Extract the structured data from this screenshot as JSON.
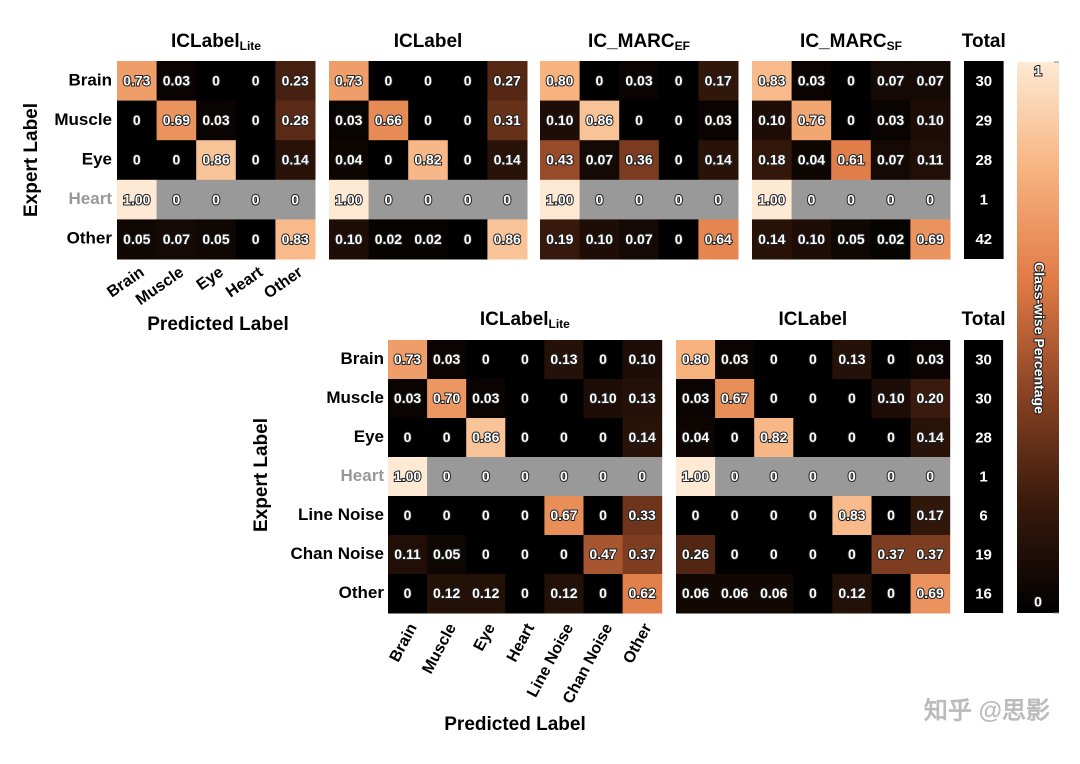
{
  "chart_data": {
    "type": "heatmap",
    "panels": [
      {
        "y_label": "Expert Label",
        "x_label": "Predicted Label",
        "categories": [
          "Brain",
          "Muscle",
          "Eye",
          "Heart",
          "Other"
        ],
        "muted_row": 3,
        "charts": [
          {
            "type": "heatmap",
            "title": "ICLabel",
            "title_sub": "Lite",
            "values": [
              [
                0.73,
                0.03,
                0,
                0,
                0.23
              ],
              [
                0,
                0.69,
                0.03,
                0,
                0.28
              ],
              [
                0,
                0,
                0.86,
                0,
                0.14
              ],
              [
                1,
                0,
                0,
                0,
                0
              ],
              [
                0.05,
                0.07,
                0.05,
                0,
                0.83
              ]
            ],
            "value_labels": [
              [
                "0.73",
                "0.03",
                "0",
                "0",
                "0.23"
              ],
              [
                "0",
                "0.69",
                "0.03",
                "0",
                "0.28"
              ],
              [
                "0",
                "0",
                "0.86",
                "0",
                "0.14"
              ],
              [
                "1.00",
                "0",
                "0",
                "0",
                "0"
              ],
              [
                "0.05",
                "0.07",
                "0.05",
                "0",
                "0.83"
              ]
            ]
          },
          {
            "type": "heatmap",
            "title": "ICLabel",
            "values": [
              [
                0.73,
                0,
                0,
                0,
                0.27
              ],
              [
                0.03,
                0.66,
                0,
                0,
                0.31
              ],
              [
                0.04,
                0,
                0.82,
                0,
                0.14
              ],
              [
                1,
                0,
                0,
                0,
                0
              ],
              [
                0.1,
                0.02,
                0.02,
                0,
                0.86
              ]
            ],
            "value_labels": [
              [
                "0.73",
                "0",
                "0",
                "0",
                "0.27"
              ],
              [
                "0.03",
                "0.66",
                "0",
                "0",
                "0.31"
              ],
              [
                "0.04",
                "0",
                "0.82",
                "0",
                "0.14"
              ],
              [
                "1.00",
                "0",
                "0",
                "0",
                "0"
              ],
              [
                "0.10",
                "0.02",
                "0.02",
                "0",
                "0.86"
              ]
            ]
          },
          {
            "type": "heatmap",
            "title": "IC_MARC",
            "title_sub": "EF",
            "values": [
              [
                0.8,
                0,
                0.03,
                0,
                0.17
              ],
              [
                0.1,
                0.86,
                0,
                0,
                0.03
              ],
              [
                0.43,
                0.07,
                0.36,
                0,
                0.14
              ],
              [
                1,
                0,
                0,
                0,
                0
              ],
              [
                0.19,
                0.1,
                0.07,
                0,
                0.64
              ]
            ],
            "value_labels": [
              [
                "0.80",
                "0",
                "0.03",
                "0",
                "0.17"
              ],
              [
                "0.10",
                "0.86",
                "0",
                "0",
                "0.03"
              ],
              [
                "0.43",
                "0.07",
                "0.36",
                "0",
                "0.14"
              ],
              [
                "1.00",
                "0",
                "0",
                "0",
                "0"
              ],
              [
                "0.19",
                "0.10",
                "0.07",
                "0",
                "0.64"
              ]
            ]
          },
          {
            "type": "heatmap",
            "title": "IC_MARC",
            "title_sub": "SF",
            "values": [
              [
                0.83,
                0.03,
                0,
                0.07,
                0.07
              ],
              [
                0.1,
                0.76,
                0,
                0.03,
                0.1
              ],
              [
                0.18,
                0.04,
                0.61,
                0.07,
                0.11
              ],
              [
                1,
                0,
                0,
                0,
                0
              ],
              [
                0.14,
                0.1,
                0.05,
                0.02,
                0.69
              ]
            ],
            "value_labels": [
              [
                "0.83",
                "0.03",
                "0",
                "0.07",
                "0.07"
              ],
              [
                "0.10",
                "0.76",
                "0",
                "0.03",
                "0.10"
              ],
              [
                "0.18",
                "0.04",
                "0.61",
                "0.07",
                "0.11"
              ],
              [
                "1.00",
                "0",
                "0",
                "0",
                "0"
              ],
              [
                "0.14",
                "0.10",
                "0.05",
                "0.02",
                "0.69"
              ]
            ]
          }
        ],
        "totals": {
          "title": "Total",
          "values": [
            30,
            29,
            28,
            1,
            42
          ]
        }
      },
      {
        "y_label": "Expert Label",
        "x_label": "Predicted Label",
        "categories": [
          "Brain",
          "Muscle",
          "Eye",
          "Heart",
          "Line Noise",
          "Chan Noise",
          "Other"
        ],
        "muted_row": 3,
        "charts": [
          {
            "type": "heatmap",
            "title": "ICLabel",
            "title_sub": "Lite",
            "values": [
              [
                0.73,
                0.03,
                0,
                0,
                0.13,
                0,
                0.1
              ],
              [
                0.03,
                0.7,
                0.03,
                0,
                0,
                0.1,
                0.13
              ],
              [
                0,
                0,
                0.86,
                0,
                0,
                0,
                0.14
              ],
              [
                1,
                0,
                0,
                0,
                0,
                0,
                0
              ],
              [
                0,
                0,
                0,
                0,
                0.67,
                0,
                0.33
              ],
              [
                0.11,
                0.05,
                0,
                0,
                0,
                0.47,
                0.37
              ],
              [
                0,
                0.12,
                0.12,
                0,
                0.12,
                0,
                0.62
              ]
            ],
            "value_labels": [
              [
                "0.73",
                "0.03",
                "0",
                "0",
                "0.13",
                "0",
                "0.10"
              ],
              [
                "0.03",
                "0.70",
                "0.03",
                "0",
                "0",
                "0.10",
                "0.13"
              ],
              [
                "0",
                "0",
                "0.86",
                "0",
                "0",
                "0",
                "0.14"
              ],
              [
                "1.00",
                "0",
                "0",
                "0",
                "0",
                "0",
                "0"
              ],
              [
                "0",
                "0",
                "0",
                "0",
                "0.67",
                "0",
                "0.33"
              ],
              [
                "0.11",
                "0.05",
                "0",
                "0",
                "0",
                "0.47",
                "0.37"
              ],
              [
                "0",
                "0.12",
                "0.12",
                "0",
                "0.12",
                "0",
                "0.62"
              ]
            ]
          },
          {
            "type": "heatmap",
            "title": "ICLabel",
            "values": [
              [
                0.8,
                0.03,
                0,
                0,
                0.13,
                0,
                0.03
              ],
              [
                0.03,
                0.67,
                0,
                0,
                0,
                0.1,
                0.2
              ],
              [
                0.04,
                0,
                0.82,
                0,
                0,
                0,
                0.14
              ],
              [
                1,
                0,
                0,
                0,
                0,
                0,
                0
              ],
              [
                0,
                0,
                0,
                0,
                0.83,
                0,
                0.17
              ],
              [
                0.26,
                0,
                0,
                0,
                0,
                0.37,
                0.37
              ],
              [
                0.06,
                0.06,
                0.06,
                0,
                0.12,
                0,
                0.69
              ]
            ],
            "value_labels": [
              [
                "0.80",
                "0.03",
                "0",
                "0",
                "0.13",
                "0",
                "0.03"
              ],
              [
                "0.03",
                "0.67",
                "0",
                "0",
                "0",
                "0.10",
                "0.20"
              ],
              [
                "0.04",
                "0",
                "0.82",
                "0",
                "0",
                "0",
                "0.14"
              ],
              [
                "1.00",
                "0",
                "0",
                "0",
                "0",
                "0",
                "0"
              ],
              [
                "0",
                "0",
                "0",
                "0",
                "0.83",
                "0",
                "0.17"
              ],
              [
                "0.26",
                "0",
                "0",
                "0",
                "0",
                "0.37",
                "0.37"
              ],
              [
                "0.06",
                "0.06",
                "0.06",
                "0",
                "0.12",
                "0",
                "0.69"
              ]
            ]
          }
        ],
        "totals": {
          "title": "Total",
          "values": [
            30,
            30,
            28,
            1,
            6,
            19,
            16
          ]
        }
      }
    ],
    "muted_color": "#999999",
    "colors": [
      "#000000",
      "#3a1a0c",
      "#8a4324",
      "#e07a45",
      "#f7b27e",
      "#fde9d4"
    ],
    "colorbar": {
      "label": "Class-wise Percentage",
      "range": [
        0,
        1
      ],
      "ticks": [
        0,
        1
      ]
    },
    "watermark": "知乎 @思影"
  }
}
